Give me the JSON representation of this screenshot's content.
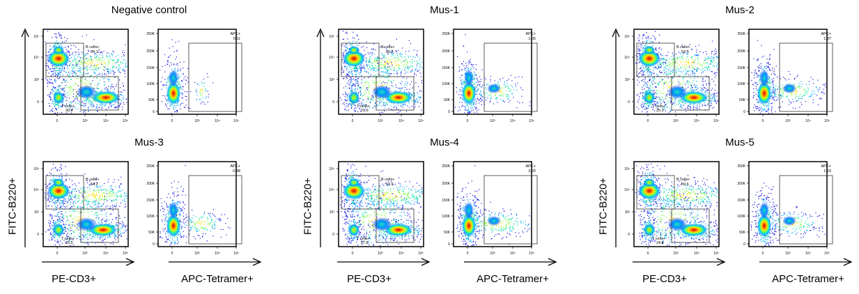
{
  "figure": {
    "x_axis_labels": {
      "cd3": "PE-CD3+",
      "tetramer": "APC-Tetramer+"
    },
    "y_axis_label": "FITC-B220+"
  },
  "panels": [
    {
      "title": "Negative control",
      "b_cells_label": "B cells+",
      "b_cells": "54.1",
      "t_cells_label": "T cells+",
      "t_cells": "30.8",
      "apc_label": "APC+",
      "apc": "0.11"
    },
    {
      "title": "Mus-1",
      "b_cells_label": "B cells+",
      "b_cells": "60.5",
      "t_cells_label": "T cells+",
      "t_cells": "21.6",
      "apc_label": "APC+",
      "apc": "1.06"
    },
    {
      "title": "Mus-2",
      "b_cells_label": "B cells+",
      "b_cells": "59.3",
      "t_cells_label": "T cells+",
      "t_cells": "25.3",
      "apc_label": "APC+",
      "apc": "1.87"
    },
    {
      "title": "Mus-3",
      "b_cells_label": "B cells+",
      "b_cells": "54.2",
      "t_cells_label": "T cells+",
      "t_cells": "25.5",
      "apc_label": "APC+",
      "apc": "0.88"
    },
    {
      "title": "Mus-4",
      "b_cells_label": "B cells+",
      "b_cells": "54.9",
      "t_cells_label": "T cells+",
      "t_cells": "27.8",
      "apc_label": "APC+",
      "apc": "3.25"
    },
    {
      "title": "Mus-5",
      "b_cells_label": "B cells+",
      "b_cells": "59.6",
      "t_cells_label": "T cells+",
      "t_cells": "24.8",
      "apc_label": "APC+",
      "apc": "1.23"
    }
  ],
  "chart_data": [
    {
      "type": "scatter",
      "panel_kind": "flow-cytometry density plot",
      "xlabel": "PE-CD3+",
      "ylabel": "FITC-B220+",
      "x_tick_labels": [
        "0",
        "10³",
        "10⁴",
        "10⁵"
      ],
      "y_tick_labels": [
        "0",
        "10³",
        "10⁴",
        "10⁵"
      ],
      "scale": "biexponential (log)",
      "gates": [
        "B cells+",
        "T cells+"
      ],
      "samples": [
        "Negative control",
        "Mus-1",
        "Mus-2",
        "Mus-3",
        "Mus-4",
        "Mus-5"
      ],
      "b_cells_percent": [
        54.1,
        60.5,
        59.3,
        54.2,
        54.9,
        59.6
      ],
      "t_cells_percent": [
        30.8,
        21.6,
        25.3,
        25.5,
        27.8,
        24.8
      ]
    },
    {
      "type": "scatter",
      "panel_kind": "flow-cytometry density plot",
      "xlabel": "APC-Tetramer+",
      "ylabel": "",
      "x_tick_labels": [
        "0",
        "10³",
        "10⁴",
        "10⁵"
      ],
      "y_tick_labels": [
        "0",
        "50K",
        "100K",
        "150K",
        "200K",
        "250K"
      ],
      "gates": [
        "APC+"
      ],
      "samples": [
        "Negative control",
        "Mus-1",
        "Mus-2",
        "Mus-3",
        "Mus-4",
        "Mus-5"
      ],
      "apc_percent": [
        0.11,
        1.06,
        1.87,
        0.88,
        3.25,
        1.23
      ]
    }
  ],
  "tick_labels": {
    "log": [
      "0",
      "10³",
      "10⁴",
      "10⁵"
    ],
    "linear": [
      "0",
      "50K",
      "100K",
      "150K",
      "200K",
      "250K"
    ]
  },
  "colors": {
    "density": [
      "#1010e0",
      "#00a8ff",
      "#00e0a0",
      "#80ff40",
      "#ffe000",
      "#ff8000",
      "#e00000"
    ]
  }
}
